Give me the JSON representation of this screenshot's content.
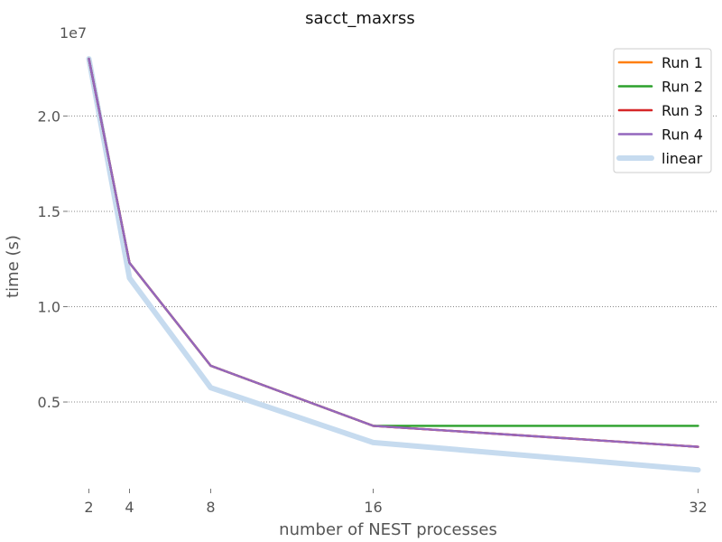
{
  "chart_data": {
    "type": "line",
    "title": "sacct_maxrss",
    "xlabel": "number of NEST processes",
    "ylabel": "time (s)",
    "y_offset_label": "1e7",
    "x": [
      2,
      4,
      8,
      16,
      32
    ],
    "x_tick_labels": [
      "2",
      "4",
      "8",
      "16",
      "32"
    ],
    "y_ticks": [
      5000000,
      10000000,
      15000000,
      20000000
    ],
    "y_tick_labels": [
      "0.5",
      "1.0",
      "1.5",
      "2.0"
    ],
    "ylim": [
      500000,
      24000000
    ],
    "xlim": [
      1,
      33
    ],
    "grid": "y-dotted",
    "legend_position": "top-right",
    "series": [
      {
        "name": "Run 1",
        "color": "#ff7f0e",
        "values": [
          23000000,
          12300000,
          6900000,
          3750000,
          2650000
        ]
      },
      {
        "name": "Run 2",
        "color": "#2ca02c",
        "values": [
          23000000,
          12300000,
          6900000,
          3750000,
          3750000
        ]
      },
      {
        "name": "Run 3",
        "color": "#d62728",
        "values": [
          23000000,
          12300000,
          6900000,
          3750000,
          2650000
        ]
      },
      {
        "name": "Run 4",
        "color": "#9467bd",
        "values": [
          23000000,
          12300000,
          6900000,
          3750000,
          2650000
        ]
      },
      {
        "name": "linear",
        "color": "#c6dbef",
        "values": [
          23000000,
          11500000,
          5750000,
          2875000,
          1437500
        ]
      }
    ]
  }
}
